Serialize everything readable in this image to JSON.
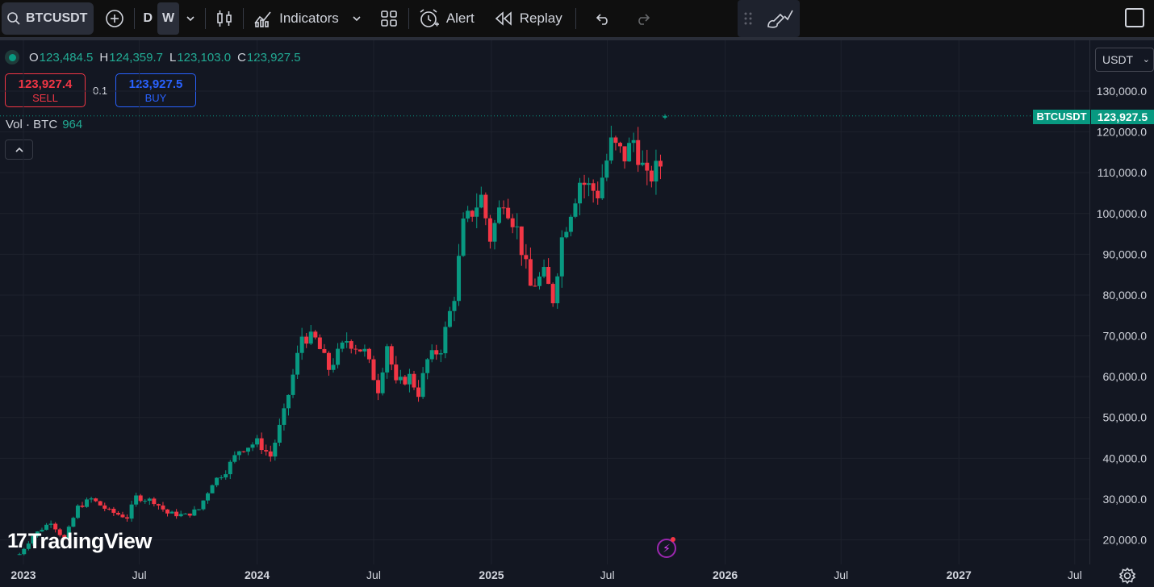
{
  "toolbar": {
    "symbol": "BTCUSDT",
    "timeframes": [
      "D",
      "W"
    ],
    "active_timeframe": "W",
    "indicators_label": "Indicators",
    "alert_label": "Alert",
    "replay_label": "Replay"
  },
  "legend": {
    "open_key": "O",
    "open": "123,484.5",
    "high_key": "H",
    "high": "124,359.7",
    "low_key": "L",
    "low": "123,103.0",
    "close_key": "C",
    "close": "123,927.5"
  },
  "trade": {
    "sell_price": "123,927.4",
    "sell_label": "SELL",
    "spread": "0.1",
    "buy_price": "123,927.5",
    "buy_label": "BUY"
  },
  "volume": {
    "label": "Vol · BTC",
    "value": "964"
  },
  "currency": "USDT",
  "last_price": {
    "symbol": "BTCUSDT",
    "value": "123,927.5"
  },
  "logo_text": "TradingView",
  "colors": {
    "up": "#089981",
    "down": "#f23645",
    "background": "#131722",
    "accent": "#2962ff"
  },
  "chart_data": {
    "type": "candlestick",
    "interval": "1W",
    "ylim": [
      16000,
      136000
    ],
    "y_ticks": [
      20000,
      30000,
      40000,
      50000,
      60000,
      70000,
      80000,
      90000,
      100000,
      110000,
      120000,
      130000
    ],
    "y_tick_labels": [
      "20,000.0",
      "30,000.0",
      "40,000.0",
      "50,000.0",
      "60,000.0",
      "70,000.0",
      "80,000.0",
      "90,000.0",
      "100,000.0",
      "110,000.0",
      "120,000.0",
      "130,000.0"
    ],
    "x_ticks": [
      {
        "label": "2023",
        "date": "2023-01-01"
      },
      {
        "label": "Jul",
        "date": "2023-07-01"
      },
      {
        "label": "2024",
        "date": "2024-01-01"
      },
      {
        "label": "Jul",
        "date": "2024-07-01"
      },
      {
        "label": "2025",
        "date": "2025-01-01"
      },
      {
        "label": "Jul",
        "date": "2025-07-01"
      },
      {
        "label": "2026",
        "date": "2026-01-01"
      },
      {
        "label": "Jul",
        "date": "2026-07-01"
      },
      {
        "label": "2027",
        "date": "2027-01-01"
      },
      {
        "label": "Jul",
        "date": "2027-07-01"
      }
    ],
    "first_week": "2022-12-26",
    "anchors": [
      [
        "2022-12-26",
        16500
      ],
      [
        "2023-01-16",
        21000
      ],
      [
        "2023-02-13",
        24500
      ],
      [
        "2023-03-06",
        20000
      ],
      [
        "2023-03-27",
        28000
      ],
      [
        "2023-04-17",
        30000
      ],
      [
        "2023-05-15",
        27000
      ],
      [
        "2023-06-12",
        25500
      ],
      [
        "2023-06-26",
        30500
      ],
      [
        "2023-07-24",
        29500
      ],
      [
        "2023-08-14",
        26500
      ],
      [
        "2023-09-11",
        26000
      ],
      [
        "2023-10-02",
        27500
      ],
      [
        "2023-10-23",
        34000
      ],
      [
        "2023-11-13",
        37000
      ],
      [
        "2023-12-04",
        42000
      ],
      [
        "2024-01-01",
        44000
      ],
      [
        "2024-01-22",
        40500
      ],
      [
        "2024-02-12",
        51000
      ],
      [
        "2024-03-04",
        65000
      ],
      [
        "2024-03-11",
        70000
      ],
      [
        "2024-04-01",
        69000
      ],
      [
        "2024-04-22",
        62000
      ],
      [
        "2024-05-20",
        69000
      ],
      [
        "2024-06-17",
        66000
      ],
      [
        "2024-07-08",
        57000
      ],
      [
        "2024-07-22",
        68000
      ],
      [
        "2024-08-05",
        58000
      ],
      [
        "2024-08-26",
        60000
      ],
      [
        "2024-09-09",
        56000
      ],
      [
        "2024-09-23",
        64000
      ],
      [
        "2024-10-14",
        67000
      ],
      [
        "2024-11-04",
        80000
      ],
      [
        "2024-11-18",
        97000
      ],
      [
        "2024-12-16",
        104000
      ],
      [
        "2024-12-30",
        94000
      ],
      [
        "2025-01-20",
        104000
      ],
      [
        "2025-02-10",
        96000
      ],
      [
        "2025-03-03",
        82000
      ],
      [
        "2025-03-24",
        85000
      ],
      [
        "2025-04-07",
        79000
      ],
      [
        "2025-04-21",
        94000
      ],
      [
        "2025-05-19",
        108000
      ],
      [
        "2025-06-16",
        105000
      ],
      [
        "2025-07-07",
        117000
      ],
      [
        "2025-07-28",
        114000
      ],
      [
        "2025-08-11",
        118000
      ],
      [
        "2025-09-01",
        108000
      ],
      [
        "2025-09-22",
        112000
      ],
      [
        "2025-09-29",
        123900
      ]
    ],
    "last_candle": {
      "open": 123484.5,
      "high": 124359.7,
      "low": 123103.0,
      "close": 123927.5
    }
  }
}
